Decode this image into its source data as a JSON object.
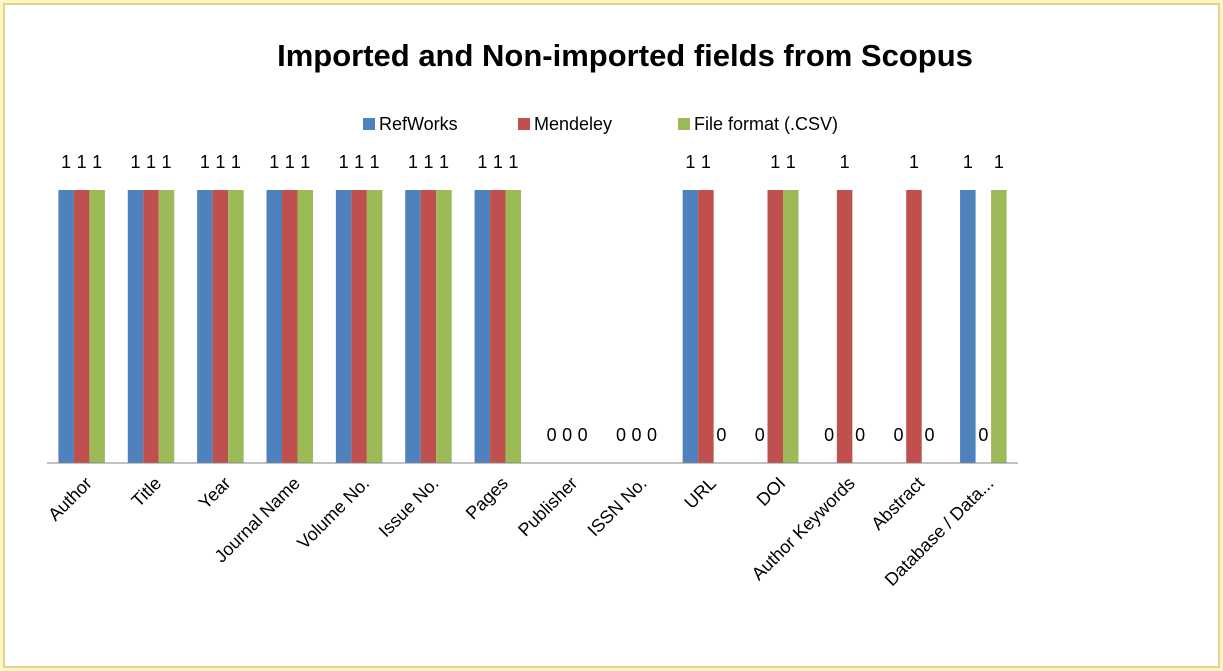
{
  "chart_data": {
    "type": "bar",
    "title": "Imported and Non-imported fields from Scopus",
    "categories": [
      "Author",
      "Title",
      "Year",
      "Journal Name",
      "Volume No.",
      "Issue No.",
      "Pages",
      "Publisher",
      "ISSN No.",
      "URL",
      "DOI",
      "Author Keywords",
      "Abstract",
      "Database / Data..."
    ],
    "series": [
      {
        "name": "RefWorks",
        "color": "#4f81bd",
        "values": [
          1,
          1,
          1,
          1,
          1,
          1,
          1,
          0,
          0,
          1,
          0,
          0,
          0,
          1
        ]
      },
      {
        "name": "Mendeley",
        "color": "#c0504d",
        "values": [
          1,
          1,
          1,
          1,
          1,
          1,
          1,
          0,
          0,
          1,
          1,
          1,
          1,
          0
        ]
      },
      {
        "name": "File format (.CSV)",
        "color": "#9bbb59",
        "values": [
          1,
          1,
          1,
          1,
          1,
          1,
          1,
          0,
          0,
          0,
          1,
          0,
          0,
          1
        ]
      }
    ],
    "ylim": [
      0,
      1
    ],
    "legend": "top"
  }
}
